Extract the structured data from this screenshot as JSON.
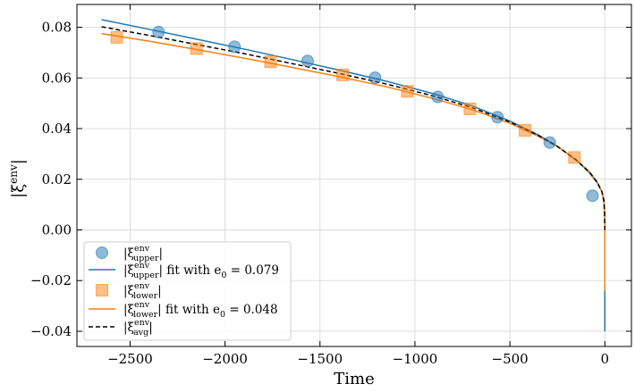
{
  "chart_data": {
    "type": "scatter",
    "title": "",
    "xlabel": "Time",
    "ylabel": "|ξ^env|",
    "xlim": [
      -2780,
      140
    ],
    "ylim": [
      -0.046,
      0.089
    ],
    "xticks": [
      -2500,
      -2000,
      -1500,
      -1000,
      -500,
      0
    ],
    "xtick_labels": [
      "−2500",
      "−2000",
      "−1500",
      "−1000",
      "−500",
      "0"
    ],
    "yticks": [
      -0.04,
      -0.02,
      0.0,
      0.02,
      0.04,
      0.06,
      0.08
    ],
    "ytick_labels": [
      "−0.04",
      "−0.02",
      "0.00",
      "0.02",
      "0.04",
      "0.06",
      "0.08"
    ],
    "grid": true,
    "legend_placement": "lower-left",
    "series": [
      {
        "name": "|ξ^env_upper|",
        "kind": "scatter",
        "marker": "circle",
        "color": "#1f77b4",
        "x": [
          -2350,
          -1950,
          -1565,
          -1210,
          -880,
          -565,
          -290,
          -65
        ],
        "y": [
          0.0781,
          0.0723,
          0.0667,
          0.0601,
          0.0525,
          0.0445,
          0.0345,
          0.0135
        ]
      },
      {
        "name": "|ξ^env_upper| fit with e_0 = 0.079",
        "kind": "line",
        "style": "solid",
        "color": "#1f77b4",
        "x": [
          -2650,
          -2400,
          -2150,
          -1900,
          -1650,
          -1400,
          -1150,
          -900,
          -700,
          -500,
          -350,
          -250,
          -150,
          -80,
          -40,
          -15,
          -5,
          -1,
          0,
          0
        ],
        "y": [
          0.083,
          0.0792,
          0.0753,
          0.0714,
          0.0673,
          0.0631,
          0.0587,
          0.0537,
          0.049,
          0.043,
          0.0375,
          0.033,
          0.0275,
          0.0225,
          0.0186,
          0.015,
          0.0118,
          0.007,
          0.0,
          -0.04
        ]
      },
      {
        "name": "|ξ^env_lower|",
        "kind": "scatter",
        "marker": "square",
        "color": "#ff7f0e",
        "x": [
          -2570,
          -2150,
          -1760,
          -1380,
          -1040,
          -710,
          -420,
          -160
        ],
        "y": [
          0.076,
          0.0716,
          0.0664,
          0.0612,
          0.0547,
          0.0478,
          0.0393,
          0.0286
        ]
      },
      {
        "name": "|ξ^env_lower| fit with e_0 = 0.048",
        "kind": "line",
        "style": "solid",
        "color": "#ff7f0e",
        "x": [
          -2650,
          -2400,
          -2150,
          -1900,
          -1650,
          -1400,
          -1150,
          -900,
          -700,
          -500,
          -350,
          -250,
          -150,
          -80,
          -40,
          -15,
          -5,
          -1,
          0,
          0
        ],
        "y": [
          0.0775,
          0.0745,
          0.0712,
          0.0678,
          0.0642,
          0.0605,
          0.0565,
          0.0518,
          0.0475,
          0.0421,
          0.037,
          0.0329,
          0.0277,
          0.0229,
          0.019,
          0.015,
          0.011,
          0.006,
          0.0,
          -0.024
        ]
      },
      {
        "name": "|ξ^env_avg|",
        "kind": "line",
        "style": "dashed",
        "color": "#000000",
        "x": [
          -2650,
          -2400,
          -2150,
          -1900,
          -1650,
          -1400,
          -1150,
          -900,
          -700,
          -500,
          -350,
          -250,
          -150,
          -80,
          -40,
          -15,
          -5,
          -1,
          0
        ],
        "y": [
          0.0802,
          0.0768,
          0.0732,
          0.0696,
          0.0657,
          0.0618,
          0.0576,
          0.0528,
          0.0483,
          0.0426,
          0.0373,
          0.033,
          0.0276,
          0.0227,
          0.0188,
          0.015,
          0.0114,
          0.0065,
          0.0
        ]
      }
    ],
    "legend": [
      {
        "main": "|ξ",
        "sup": "env",
        "sub": "upper",
        "tail": "|"
      },
      {
        "main": "|ξ",
        "sup": "env",
        "sub": "upper",
        "tail": "| fit with e",
        "e_sub": "0",
        "value_text": " = 0.079"
      },
      {
        "main": "|ξ",
        "sup": "env",
        "sub": "lower",
        "tail": "|"
      },
      {
        "main": "|ξ",
        "sup": "env",
        "sub": "lower",
        "tail": "| fit with e",
        "e_sub": "0",
        "value_text": " = 0.048"
      },
      {
        "main": "|ξ",
        "sup": "env",
        "sub": "avg",
        "tail": "|"
      }
    ]
  }
}
